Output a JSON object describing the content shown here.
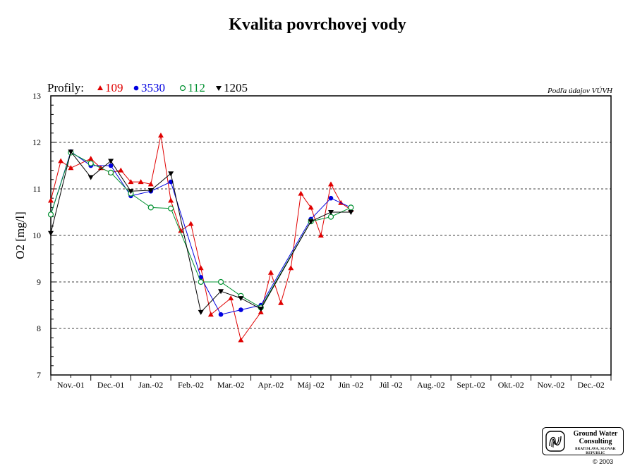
{
  "chart_data": {
    "type": "line",
    "title": "Kvalita povrchovej vody",
    "source_note": "Podľa údajov VÚVH",
    "legend_prefix": "Profily:",
    "legend_placement": "top-left",
    "ylabel": "O2 [mg/l]",
    "xlabel": "",
    "ylim": [
      7,
      13
    ],
    "y_ticks": [
      "7",
      "8",
      "9",
      "10",
      "11",
      "12",
      "13"
    ],
    "grid": "horizontal dashed",
    "categories": [
      "Nov.-01",
      "Dec.-01",
      "Jan.-02",
      "Feb.-02",
      "Mar.-02",
      "Apr.-02",
      "Máj -02",
      "Jún -02",
      "Júl -02",
      "Aug.-02",
      "Sept.-02",
      "Okt.-02",
      "Nov.-02",
      "Dec.-02"
    ],
    "series": [
      {
        "name": "109",
        "color": "#e00000",
        "marker": "triangle-up",
        "points": [
          {
            "x": 0.0,
            "y": 10.75
          },
          {
            "x": 0.5,
            "y": 11.6
          },
          {
            "x": 1.0,
            "y": 11.45
          },
          {
            "x": 2.0,
            "y": 11.65
          },
          {
            "x": 2.5,
            "y": 11.45
          },
          {
            "x": 3.0,
            "y": 11.35
          },
          {
            "x": 3.5,
            "y": 11.4
          },
          {
            "x": 4.0,
            "y": 11.15
          },
          {
            "x": 4.5,
            "y": 11.15
          },
          {
            "x": 5.0,
            "y": 11.1
          },
          {
            "x": 5.5,
            "y": 12.15
          },
          {
            "x": 6.0,
            "y": 10.75
          },
          {
            "x": 6.5,
            "y": 10.1
          },
          {
            "x": 7.0,
            "y": 10.25
          },
          {
            "x": 7.5,
            "y": 9.3
          },
          {
            "x": 8.0,
            "y": 8.3
          },
          {
            "x": 9.0,
            "y": 8.65
          },
          {
            "x": 9.5,
            "y": 7.75
          },
          {
            "x": 10.5,
            "y": 8.35
          },
          {
            "x": 11.0,
            "y": 9.2
          },
          {
            "x": 11.5,
            "y": 8.55
          },
          {
            "x": 12.0,
            "y": 9.3
          },
          {
            "x": 12.5,
            "y": 10.9
          },
          {
            "x": 13.0,
            "y": 10.6
          },
          {
            "x": 13.5,
            "y": 10.0
          },
          {
            "x": 14.0,
            "y": 11.1
          },
          {
            "x": 14.5,
            "y": 10.7
          },
          {
            "x": 15.0,
            "y": 10.55
          }
        ]
      },
      {
        "name": "3530",
        "color": "#0000e0",
        "marker": "circle-filled",
        "points": [
          {
            "x": 0.0,
            "y": 10.45
          },
          {
            "x": 1.0,
            "y": 11.8
          },
          {
            "x": 2.0,
            "y": 11.5
          },
          {
            "x": 3.0,
            "y": 11.5
          },
          {
            "x": 4.0,
            "y": 10.85
          },
          {
            "x": 5.0,
            "y": 10.95
          },
          {
            "x": 6.0,
            "y": 11.15
          },
          {
            "x": 7.5,
            "y": 9.1
          },
          {
            "x": 8.5,
            "y": 8.3
          },
          {
            "x": 9.5,
            "y": 8.4
          },
          {
            "x": 10.5,
            "y": 8.5
          },
          {
            "x": 13.0,
            "y": 10.35
          },
          {
            "x": 14.0,
            "y": 10.8
          },
          {
            "x": 15.0,
            "y": 10.6
          }
        ]
      },
      {
        "name": "112",
        "color": "#009030",
        "marker": "circle-open",
        "points": [
          {
            "x": 0.0,
            "y": 10.45
          },
          {
            "x": 1.0,
            "y": 11.78
          },
          {
            "x": 2.0,
            "y": 11.55
          },
          {
            "x": 3.0,
            "y": 11.35
          },
          {
            "x": 4.0,
            "y": 10.9
          },
          {
            "x": 5.0,
            "y": 10.6
          },
          {
            "x": 6.0,
            "y": 10.58
          },
          {
            "x": 7.5,
            "y": 9.0
          },
          {
            "x": 8.5,
            "y": 9.0
          },
          {
            "x": 9.5,
            "y": 8.7
          },
          {
            "x": 10.5,
            "y": 8.45
          },
          {
            "x": 13.0,
            "y": 10.3
          },
          {
            "x": 14.0,
            "y": 10.4
          },
          {
            "x": 15.0,
            "y": 10.6
          }
        ]
      },
      {
        "name": "1205",
        "color": "#000000",
        "marker": "triangle-down",
        "points": [
          {
            "x": 0.0,
            "y": 10.05
          },
          {
            "x": 1.0,
            "y": 11.8
          },
          {
            "x": 2.0,
            "y": 11.25
          },
          {
            "x": 3.0,
            "y": 11.6
          },
          {
            "x": 4.0,
            "y": 10.95
          },
          {
            "x": 5.0,
            "y": 10.97
          },
          {
            "x": 6.0,
            "y": 11.33
          },
          {
            "x": 7.5,
            "y": 8.35
          },
          {
            "x": 8.5,
            "y": 8.8
          },
          {
            "x": 9.5,
            "y": 8.65
          },
          {
            "x": 10.5,
            "y": 8.42
          },
          {
            "x": 13.0,
            "y": 10.3
          },
          {
            "x": 14.0,
            "y": 10.5
          },
          {
            "x": 15.0,
            "y": 10.5
          }
        ]
      }
    ]
  },
  "logo": {
    "line1": "Ground Water",
    "line2": "Consulting",
    "line3": "BRATISLAVA, SLOVAK REPUBLIC"
  },
  "copyright": "© 2003"
}
